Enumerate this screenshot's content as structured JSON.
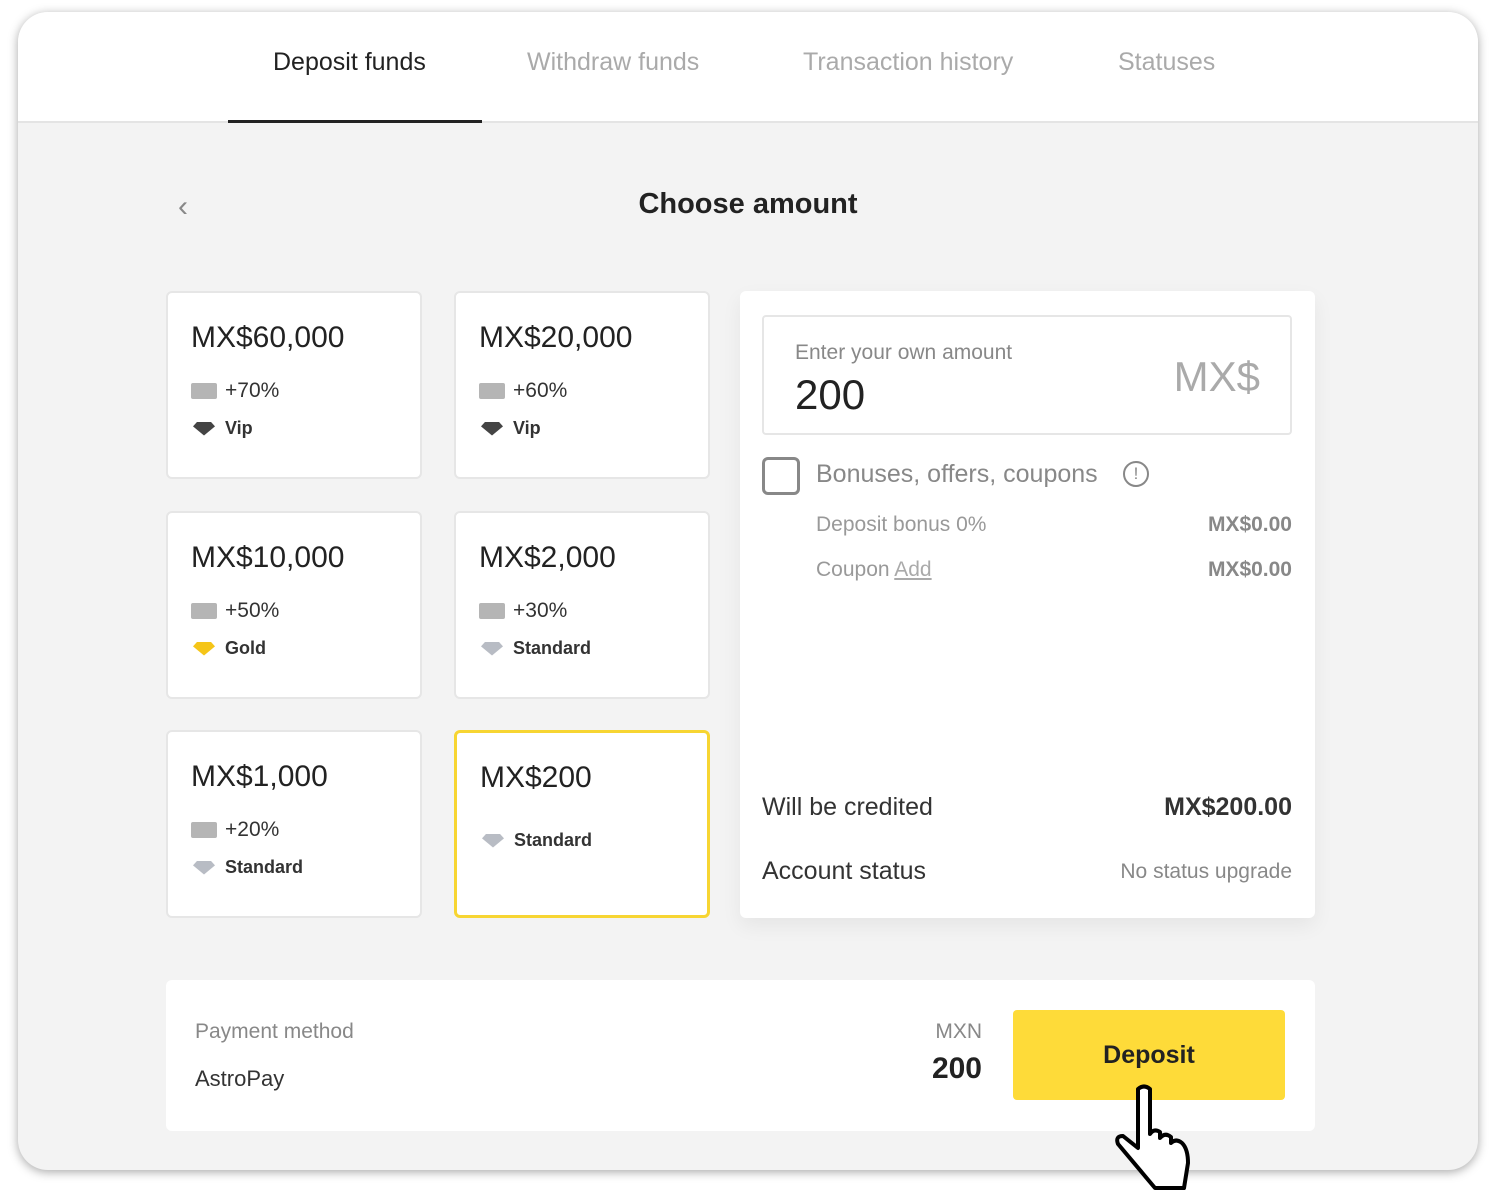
{
  "tabs": [
    "Deposit funds",
    "Withdraw funds",
    "Transaction history",
    "Statuses"
  ],
  "title": "Choose amount",
  "cards": [
    {
      "amount": "MX$60,000",
      "bonus": "+70%",
      "level": "Vip",
      "gem_color": "#444444"
    },
    {
      "amount": "MX$20,000",
      "bonus": "+60%",
      "level": "Vip",
      "gem_color": "#444444"
    },
    {
      "amount": "MX$10,000",
      "bonus": "+50%",
      "level": "Gold",
      "gem_color": "#f5c518"
    },
    {
      "amount": "MX$2,000",
      "bonus": "+30%",
      "level": "Standard",
      "gem_color": "#b8bcc4"
    },
    {
      "amount": "MX$1,000",
      "bonus": "+20%",
      "level": "Standard",
      "gem_color": "#b8bcc4"
    },
    {
      "amount": "MX$200",
      "bonus": "",
      "level": "Standard",
      "gem_color": "#b8bcc4",
      "selected": true
    }
  ],
  "panel": {
    "input_label": "Enter your own amount",
    "input_value": "200",
    "currency": "MX$",
    "bonuses_label": "Bonuses, offers, coupons",
    "deposit_bonus_label": "Deposit bonus 0%",
    "deposit_bonus_value": "MX$0.00",
    "coupon_label": "Coupon",
    "coupon_link": "Add",
    "coupon_value": "MX$0.00",
    "credited_label": "Will be credited",
    "credited_value": "MX$200.00",
    "status_label": "Account status",
    "status_value": "No status upgrade"
  },
  "footer": {
    "method_label": "Payment method",
    "method_value": "AstroPay",
    "currency": "MXN",
    "amount": "200",
    "deposit_label": "Deposit"
  },
  "accent": "#fedb39"
}
